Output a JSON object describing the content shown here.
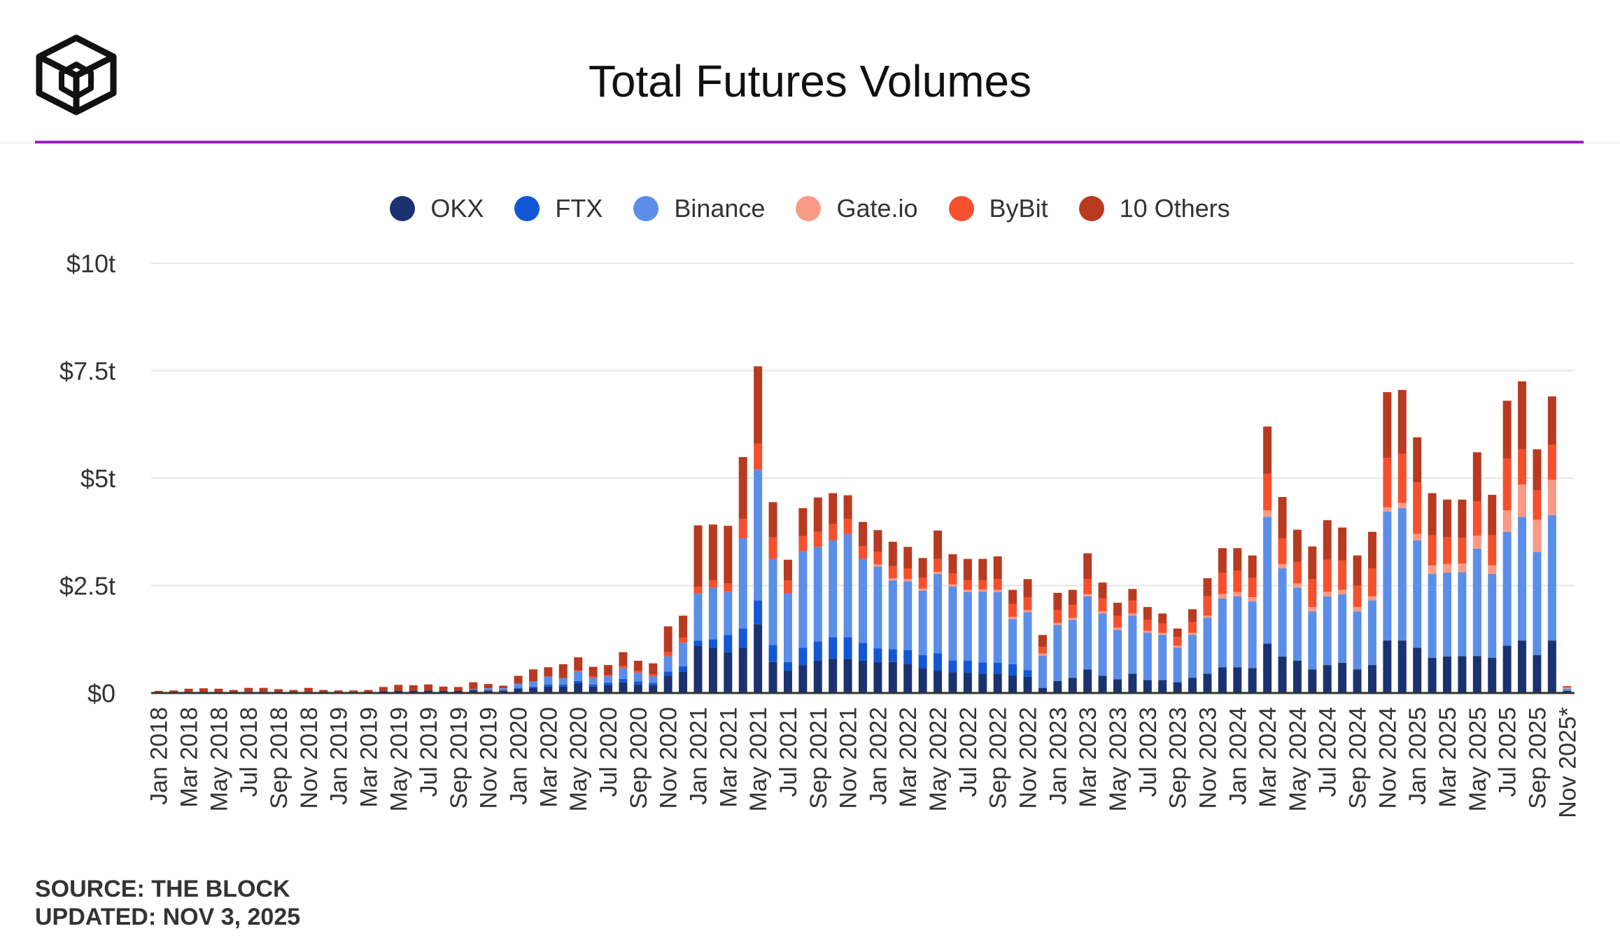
{
  "header": {
    "title": "Total Futures Volumes"
  },
  "legend": {
    "items": [
      {
        "label": "OKX",
        "color": "#1b3271"
      },
      {
        "label": "FTX",
        "color": "#1257d6"
      },
      {
        "label": "Binance",
        "color": "#5b8ee8"
      },
      {
        "label": "Gate.io",
        "color": "#f99a86"
      },
      {
        "label": "ByBit",
        "color": "#f5502e"
      },
      {
        "label": "10 Others",
        "color": "#b83a20"
      }
    ]
  },
  "footer": {
    "source": "SOURCE: THE BLOCK",
    "updated": "UPDATED: NOV 3, 2025"
  },
  "chart_data": {
    "type": "bar",
    "stacked": true,
    "title": "Total Futures Volumes",
    "xlabel": "",
    "ylabel": "",
    "ylim": [
      0,
      10
    ],
    "unit": "trillion USD",
    "y_ticks": [
      {
        "value": 0,
        "label": "$0"
      },
      {
        "value": 2.5,
        "label": "$2.5t"
      },
      {
        "value": 5,
        "label": "$5t"
      },
      {
        "value": 7.5,
        "label": "$7.5t"
      },
      {
        "value": 10,
        "label": "$10t"
      }
    ],
    "x_tick_every": 2,
    "categories": [
      "Jan 2018",
      "Feb 2018",
      "Mar 2018",
      "Apr 2018",
      "May 2018",
      "Jun 2018",
      "Jul 2018",
      "Aug 2018",
      "Sep 2018",
      "Oct 2018",
      "Nov 2018",
      "Dec 2018",
      "Jan 2019",
      "Feb 2019",
      "Mar 2019",
      "Apr 2019",
      "May 2019",
      "Jun 2019",
      "Jul 2019",
      "Aug 2019",
      "Sep 2019",
      "Oct 2019",
      "Nov 2019",
      "Dec 2019",
      "Jan 2020",
      "Feb 2020",
      "Mar 2020",
      "Apr 2020",
      "May 2020",
      "Jun 2020",
      "Jul 2020",
      "Aug 2020",
      "Sep 2020",
      "Oct 2020",
      "Nov 2020",
      "Dec 2020",
      "Jan 2021",
      "Feb 2021",
      "Mar 2021",
      "Apr 2021",
      "May 2021",
      "Jun 2021",
      "Jul 2021",
      "Aug 2021",
      "Sep 2021",
      "Oct 2021",
      "Nov 2021",
      "Dec 2021",
      "Jan 2022",
      "Feb 2022",
      "Mar 2022",
      "Apr 2022",
      "May 2022",
      "Jun 2022",
      "Jul 2022",
      "Aug 2022",
      "Sep 2022",
      "Oct 2022",
      "Nov 2022",
      "Dec 2022",
      "Jan 2023",
      "Feb 2023",
      "Mar 2023",
      "Apr 2023",
      "May 2023",
      "Jun 2023",
      "Jul 2023",
      "Aug 2023",
      "Sep 2023",
      "Oct 2023",
      "Nov 2023",
      "Dec 2023",
      "Jan 2024",
      "Feb 2024",
      "Mar 2024",
      "Apr 2024",
      "May 2024",
      "Jun 2024",
      "Jul 2024",
      "Aug 2024",
      "Sep 2024",
      "Oct 2024",
      "Nov 2024",
      "Dec 2024",
      "Jan 2025",
      "Feb 2025",
      "Mar 2025",
      "Apr 2025",
      "May 2025",
      "Jun 2025",
      "Jul 2025",
      "Aug 2025",
      "Sep 2025",
      "Oct 2025",
      "Nov 2025*"
    ],
    "series": [
      {
        "name": "OKX",
        "color": "#1b3271",
        "values": [
          0.01,
          0.02,
          0.03,
          0.03,
          0.02,
          0.02,
          0.03,
          0.03,
          0.02,
          0.02,
          0.03,
          0.02,
          0.02,
          0.02,
          0.02,
          0.04,
          0.05,
          0.05,
          0.06,
          0.05,
          0.05,
          0.07,
          0.06,
          0.06,
          0.1,
          0.12,
          0.15,
          0.15,
          0.22,
          0.15,
          0.18,
          0.25,
          0.2,
          0.18,
          0.4,
          0.5,
          1.1,
          1.05,
          0.95,
          1.05,
          1.6,
          0.72,
          0.52,
          0.65,
          0.75,
          0.8,
          0.8,
          0.75,
          0.72,
          0.72,
          0.68,
          0.58,
          0.52,
          0.48,
          0.47,
          0.45,
          0.45,
          0.42,
          0.38,
          0.12,
          0.28,
          0.35,
          0.55,
          0.4,
          0.32,
          0.45,
          0.3,
          0.3,
          0.25,
          0.35,
          0.45,
          0.6,
          0.6,
          0.58,
          1.15,
          0.85,
          0.75,
          0.55,
          0.65,
          0.7,
          0.55,
          0.65,
          1.22,
          1.22,
          1.05,
          0.82,
          0.85,
          0.86,
          0.86,
          0.82,
          1.1,
          1.22,
          0.88,
          1.22,
          0.05
        ]
      },
      {
        "name": "FTX",
        "color": "#1257d6",
        "values": [
          0,
          0,
          0,
          0,
          0,
          0,
          0,
          0,
          0,
          0,
          0,
          0,
          0,
          0,
          0,
          0,
          0,
          0,
          0,
          0,
          0,
          0,
          0,
          0,
          0.02,
          0.03,
          0.05,
          0.05,
          0.06,
          0.05,
          0.06,
          0.08,
          0.07,
          0.06,
          0.1,
          0.12,
          0.12,
          0.2,
          0.4,
          0.45,
          0.55,
          0.4,
          0.2,
          0.4,
          0.45,
          0.5,
          0.5,
          0.42,
          0.32,
          0.3,
          0.32,
          0.3,
          0.4,
          0.28,
          0.28,
          0.26,
          0.25,
          0.25,
          0.15,
          0,
          0,
          0,
          0,
          0,
          0,
          0,
          0,
          0,
          0,
          0,
          0,
          0,
          0,
          0,
          0,
          0,
          0,
          0,
          0,
          0,
          0,
          0,
          0,
          0,
          0,
          0,
          0,
          0,
          0,
          0,
          0,
          0,
          0,
          0,
          0
        ]
      },
      {
        "name": "Binance",
        "color": "#5b8ee8",
        "values": [
          0,
          0,
          0,
          0,
          0,
          0,
          0,
          0,
          0,
          0,
          0,
          0,
          0,
          0,
          0,
          0,
          0,
          0,
          0,
          0,
          0,
          0.02,
          0.05,
          0.05,
          0.1,
          0.12,
          0.18,
          0.15,
          0.22,
          0.15,
          0.15,
          0.25,
          0.2,
          0.15,
          0.35,
          0.55,
          1.1,
          1.2,
          1.0,
          2.1,
          3.05,
          2.0,
          1.6,
          2.25,
          2.2,
          2.25,
          2.4,
          1.95,
          1.9,
          1.6,
          1.6,
          1.5,
          1.85,
          1.72,
          1.6,
          1.65,
          1.65,
          1.05,
          1.35,
          0.75,
          1.3,
          1.35,
          1.7,
          1.45,
          1.15,
          1.35,
          1.1,
          1.05,
          0.8,
          1.0,
          1.3,
          1.6,
          1.65,
          1.55,
          2.95,
          2.05,
          1.7,
          1.35,
          1.6,
          1.6,
          1.35,
          1.5,
          3.0,
          3.08,
          2.5,
          1.95,
          1.95,
          1.95,
          2.5,
          1.95,
          2.65,
          2.88,
          2.4,
          2.92,
          0.05
        ]
      },
      {
        "name": "Gate.io",
        "color": "#f99a86",
        "values": [
          0,
          0,
          0,
          0,
          0,
          0,
          0,
          0,
          0,
          0,
          0,
          0,
          0,
          0,
          0,
          0,
          0,
          0,
          0,
          0,
          0,
          0,
          0,
          0,
          0,
          0,
          0,
          0,
          0,
          0,
          0,
          0,
          0,
          0,
          0,
          0,
          0,
          0,
          0,
          0,
          0,
          0,
          0,
          0,
          0,
          0,
          0,
          0,
          0.05,
          0.05,
          0.05,
          0.05,
          0.05,
          0.05,
          0.05,
          0.05,
          0.05,
          0.05,
          0.05,
          0.05,
          0.05,
          0.05,
          0.05,
          0.05,
          0.05,
          0.05,
          0.05,
          0.05,
          0.05,
          0.05,
          0.05,
          0.1,
          0.1,
          0.1,
          0.15,
          0.1,
          0.1,
          0.1,
          0.1,
          0.1,
          0.1,
          0.1,
          0.1,
          0.12,
          0.15,
          0.2,
          0.2,
          0.2,
          0.3,
          0.2,
          0.5,
          0.75,
          0.75,
          0.82,
          0.02
        ]
      },
      {
        "name": "ByBit",
        "color": "#f5502e",
        "values": [
          0,
          0,
          0,
          0,
          0,
          0,
          0,
          0,
          0,
          0,
          0,
          0,
          0,
          0,
          0,
          0,
          0,
          0,
          0,
          0,
          0,
          0,
          0,
          0,
          0,
          0,
          0,
          0,
          0.03,
          0.03,
          0.03,
          0.05,
          0.05,
          0.05,
          0.1,
          0.12,
          0.15,
          0.17,
          0.2,
          0.45,
          0.6,
          0.5,
          0.3,
          0.35,
          0.35,
          0.38,
          0.35,
          0.3,
          0.3,
          0.28,
          0.25,
          0.25,
          0.3,
          0.25,
          0.22,
          0.22,
          0.25,
          0.3,
          0.3,
          0.15,
          0.3,
          0.3,
          0.35,
          0.3,
          0.28,
          0.3,
          0.25,
          0.22,
          0.2,
          0.25,
          0.45,
          0.5,
          0.5,
          0.45,
          0.85,
          0.6,
          0.5,
          0.65,
          0.75,
          0.68,
          0.5,
          0.65,
          1.15,
          1.15,
          1.2,
          0.7,
          0.62,
          0.6,
          0.8,
          0.7,
          1.2,
          0.82,
          0.68,
          0.82,
          0.02
        ]
      },
      {
        "name": "10 Others",
        "color": "#b83a20",
        "values": [
          0.04,
          0.04,
          0.07,
          0.08,
          0.08,
          0.05,
          0.09,
          0.09,
          0.07,
          0.05,
          0.09,
          0.05,
          0.04,
          0.04,
          0.05,
          0.1,
          0.14,
          0.13,
          0.14,
          0.1,
          0.09,
          0.16,
          0.1,
          0.06,
          0.18,
          0.28,
          0.22,
          0.32,
          0.3,
          0.23,
          0.23,
          0.32,
          0.23,
          0.25,
          0.6,
          0.51,
          1.43,
          1.3,
          1.34,
          1.44,
          1.8,
          0.82,
          0.48,
          0.65,
          0.8,
          0.72,
          0.55,
          0.56,
          0.5,
          0.57,
          0.5,
          0.46,
          0.66,
          0.45,
          0.5,
          0.49,
          0.53,
          0.33,
          0.42,
          0.28,
          0.4,
          0.35,
          0.6,
          0.37,
          0.3,
          0.27,
          0.3,
          0.23,
          0.2,
          0.3,
          0.42,
          0.57,
          0.52,
          0.52,
          1.1,
          0.96,
          0.75,
          0.76,
          0.92,
          0.77,
          0.7,
          0.85,
          1.53,
          1.48,
          1.05,
          0.98,
          0.88,
          0.89,
          1.14,
          0.94,
          1.35,
          1.58,
          0.96,
          1.12,
          0.02
        ]
      }
    ]
  }
}
